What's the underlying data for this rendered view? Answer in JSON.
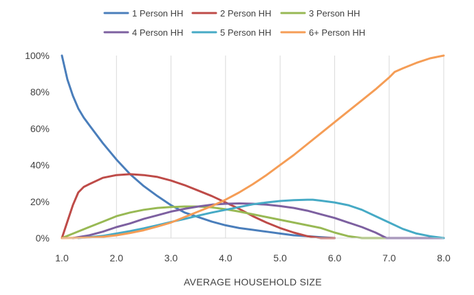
{
  "chart_data": {
    "type": "line",
    "title": "",
    "xlabel": "AVERAGE HOUSEHOLD SIZE",
    "ylabel": "",
    "xlim": [
      1.0,
      8.0
    ],
    "ylim": [
      0,
      100
    ],
    "x_ticks": [
      1,
      2,
      3,
      4,
      5,
      6,
      7,
      8
    ],
    "x_tick_labels": [
      "1.0",
      "2.0",
      "3.0",
      "4.0",
      "5.0",
      "6.0",
      "7.0",
      "8.0"
    ],
    "y_ticks": [
      0,
      20,
      40,
      60,
      80,
      100
    ],
    "y_tick_labels": [
      "0%",
      "20%",
      "40%",
      "60%",
      "80%",
      "100%"
    ],
    "grid": "vertical",
    "legend": "top",
    "series": [
      {
        "name": "1 Person HH",
        "color": "#4a7ebb",
        "points": [
          [
            1.0,
            100
          ],
          [
            1.1,
            87
          ],
          [
            1.2,
            78
          ],
          [
            1.3,
            71
          ],
          [
            1.4,
            66
          ],
          [
            1.5,
            62
          ],
          [
            1.75,
            52
          ],
          [
            2.0,
            43
          ],
          [
            2.25,
            35
          ],
          [
            2.5,
            28.5
          ],
          [
            2.75,
            23
          ],
          [
            3.0,
            18
          ],
          [
            3.25,
            14
          ],
          [
            3.5,
            11.5
          ],
          [
            3.75,
            9
          ],
          [
            4.0,
            7
          ],
          [
            4.25,
            5.5
          ],
          [
            4.5,
            4.5
          ],
          [
            4.75,
            3.5
          ],
          [
            5.0,
            2.5
          ],
          [
            5.25,
            1.5
          ],
          [
            5.5,
            1
          ],
          [
            5.75,
            0.5
          ],
          [
            6.0,
            0
          ]
        ]
      },
      {
        "name": "2 Person HH",
        "color": "#be4b48",
        "points": [
          [
            1.0,
            0
          ],
          [
            1.1,
            9
          ],
          [
            1.2,
            18
          ],
          [
            1.3,
            25
          ],
          [
            1.4,
            28
          ],
          [
            1.5,
            29.5
          ],
          [
            1.75,
            33
          ],
          [
            2.0,
            34.5
          ],
          [
            2.25,
            35
          ],
          [
            2.5,
            34.5
          ],
          [
            2.75,
            33.5
          ],
          [
            3.0,
            31.5
          ],
          [
            3.25,
            29
          ],
          [
            3.5,
            26
          ],
          [
            3.75,
            23
          ],
          [
            4.0,
            19.5
          ],
          [
            4.25,
            16
          ],
          [
            4.5,
            12
          ],
          [
            4.75,
            8.5
          ],
          [
            5.0,
            5.5
          ],
          [
            5.25,
            3
          ],
          [
            5.5,
            1
          ],
          [
            5.75,
            0
          ],
          [
            6.0,
            0
          ]
        ]
      },
      {
        "name": "3 Person HH",
        "color": "#98b954",
        "points": [
          [
            1.0,
            0
          ],
          [
            1.25,
            3
          ],
          [
            1.5,
            6
          ],
          [
            1.75,
            9
          ],
          [
            2.0,
            12
          ],
          [
            2.25,
            14
          ],
          [
            2.5,
            15.5
          ],
          [
            2.75,
            16.5
          ],
          [
            3.0,
            17
          ],
          [
            3.25,
            17.3
          ],
          [
            3.5,
            17.3
          ],
          [
            3.75,
            16.8
          ],
          [
            4.0,
            15.8
          ],
          [
            4.25,
            14.5
          ],
          [
            4.5,
            13
          ],
          [
            4.75,
            11.5
          ],
          [
            5.0,
            10
          ],
          [
            5.25,
            8.5
          ],
          [
            5.5,
            7
          ],
          [
            5.75,
            5.5
          ],
          [
            6.0,
            3
          ],
          [
            6.25,
            1
          ],
          [
            6.5,
            0
          ],
          [
            7.0,
            0
          ]
        ]
      },
      {
        "name": "4 Person HH",
        "color": "#7d60a0",
        "points": [
          [
            1.2,
            0
          ],
          [
            1.5,
            1.5
          ],
          [
            1.75,
            3.5
          ],
          [
            2.0,
            6
          ],
          [
            2.25,
            8
          ],
          [
            2.5,
            10.5
          ],
          [
            2.75,
            12.5
          ],
          [
            3.0,
            14.5
          ],
          [
            3.25,
            16
          ],
          [
            3.5,
            17.3
          ],
          [
            3.75,
            18.3
          ],
          [
            4.0,
            18.8
          ],
          [
            4.25,
            19
          ],
          [
            4.5,
            18.8
          ],
          [
            4.75,
            18.3
          ],
          [
            5.0,
            17.5
          ],
          [
            5.25,
            16.5
          ],
          [
            5.5,
            15
          ],
          [
            5.75,
            13
          ],
          [
            6.0,
            11
          ],
          [
            6.25,
            8.5
          ],
          [
            6.5,
            6
          ],
          [
            6.75,
            3
          ],
          [
            6.95,
            0
          ],
          [
            8.0,
            0
          ]
        ]
      },
      {
        "name": "5 Person HH",
        "color": "#46aac5",
        "points": [
          [
            1.3,
            0
          ],
          [
            1.5,
            0.5
          ],
          [
            1.75,
            1.2
          ],
          [
            2.0,
            2.5
          ],
          [
            2.25,
            3.8
          ],
          [
            2.5,
            5.3
          ],
          [
            2.75,
            7
          ],
          [
            3.0,
            8.8
          ],
          [
            3.25,
            10.5
          ],
          [
            3.5,
            12.3
          ],
          [
            3.75,
            14
          ],
          [
            4.0,
            15.5
          ],
          [
            4.25,
            17
          ],
          [
            4.5,
            18.5
          ],
          [
            4.75,
            19.5
          ],
          [
            5.0,
            20.3
          ],
          [
            5.25,
            20.8
          ],
          [
            5.5,
            21
          ],
          [
            5.6,
            21
          ],
          [
            5.75,
            20.5
          ],
          [
            6.0,
            19.5
          ],
          [
            6.25,
            18
          ],
          [
            6.5,
            15.5
          ],
          [
            6.75,
            12
          ],
          [
            7.0,
            8.5
          ],
          [
            7.25,
            5
          ],
          [
            7.5,
            2.5
          ],
          [
            7.75,
            1
          ],
          [
            8.0,
            0
          ]
        ]
      },
      {
        "name": "6+ Person HH",
        "color": "#f59d56",
        "points": [
          [
            1.0,
            0
          ],
          [
            1.25,
            0.1
          ],
          [
            1.5,
            0.3
          ],
          [
            1.75,
            0.7
          ],
          [
            2.0,
            1.5
          ],
          [
            2.25,
            2.8
          ],
          [
            2.5,
            4.3
          ],
          [
            2.75,
            6.3
          ],
          [
            3.0,
            8.5
          ],
          [
            3.25,
            11.5
          ],
          [
            3.5,
            14.5
          ],
          [
            3.75,
            17.5
          ],
          [
            4.0,
            21
          ],
          [
            4.25,
            25
          ],
          [
            4.5,
            29.5
          ],
          [
            4.75,
            34.5
          ],
          [
            5.0,
            40
          ],
          [
            5.25,
            45.5
          ],
          [
            5.5,
            51.5
          ],
          [
            5.75,
            57.5
          ],
          [
            6.0,
            63.5
          ],
          [
            6.25,
            69.5
          ],
          [
            6.5,
            75.5
          ],
          [
            6.75,
            81.5
          ],
          [
            7.0,
            88
          ],
          [
            7.1,
            91
          ],
          [
            7.25,
            93
          ],
          [
            7.5,
            96
          ],
          [
            7.75,
            98.5
          ],
          [
            8.0,
            100
          ]
        ]
      }
    ]
  }
}
